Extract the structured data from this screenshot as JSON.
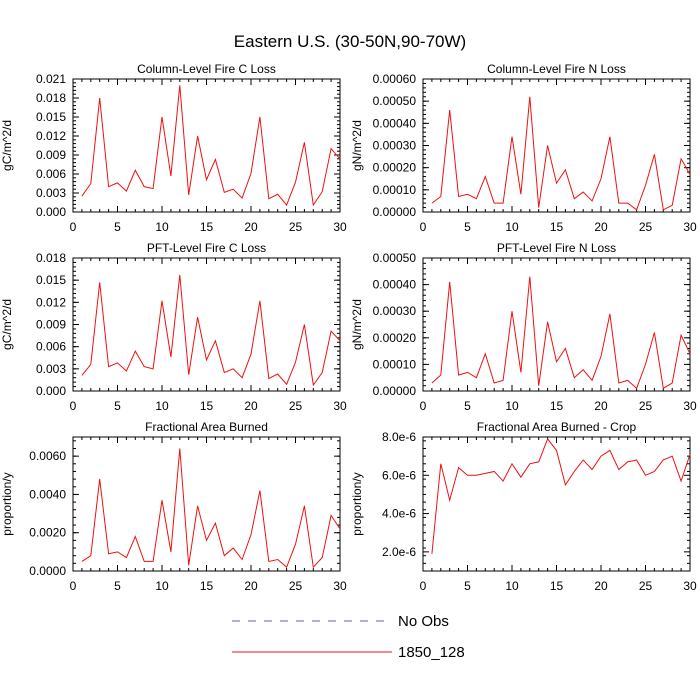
{
  "figure": {
    "title": "Eastern U.S. (30-50N,90-70W)",
    "legend": {
      "placement": "bottom-center",
      "items": [
        {
          "label": "No Obs",
          "style": "dashed",
          "color": "#5b5bd6"
        },
        {
          "label": "1850_128",
          "style": "solid",
          "color": "#ee1111"
        }
      ]
    }
  },
  "chart_data": [
    {
      "type": "line",
      "title": "Column-Level Fire C Loss",
      "xlabel": "",
      "ylabel": "gC/m^2/d",
      "xlim": [
        0,
        30
      ],
      "ylim": [
        0,
        0.021
      ],
      "xticks": [
        "0",
        "5",
        "10",
        "15",
        "20",
        "25",
        "30"
      ],
      "yticks": [
        "0.000",
        "0.003",
        "0.006",
        "0.009",
        "0.012",
        "0.015",
        "0.018",
        "0.021"
      ],
      "series": [
        {
          "color": "#ee1111",
          "x": [
            1,
            2,
            3,
            4,
            5,
            6,
            7,
            8,
            9,
            10,
            11,
            12,
            13,
            14,
            15,
            16,
            17,
            18,
            19,
            20,
            21,
            22,
            23,
            24,
            25,
            26,
            27,
            28,
            29,
            30
          ],
          "y": [
            0.0025,
            0.0045,
            0.018,
            0.004,
            0.0046,
            0.0033,
            0.0066,
            0.004,
            0.0037,
            0.015,
            0.0057,
            0.02,
            0.0027,
            0.012,
            0.0051,
            0.0083,
            0.0031,
            0.0036,
            0.0022,
            0.0061,
            0.015,
            0.0021,
            0.0028,
            0.0011,
            0.0047,
            0.011,
            0.0011,
            0.0032,
            0.01,
            0.0084
          ]
        }
      ]
    },
    {
      "type": "line",
      "title": "Column-Level Fire N Loss",
      "xlabel": "",
      "ylabel": "gN/m^2/d",
      "xlim": [
        0,
        30
      ],
      "ylim": [
        0,
        0.0006
      ],
      "xticks": [
        "0",
        "5",
        "10",
        "15",
        "20",
        "25",
        "30"
      ],
      "yticks": [
        "0.00000",
        "0.00010",
        "0.00020",
        "0.00030",
        "0.00040",
        "0.00050",
        "0.00060"
      ],
      "series": [
        {
          "color": "#ee1111",
          "x": [
            1,
            2,
            3,
            4,
            5,
            6,
            7,
            8,
            9,
            10,
            11,
            12,
            13,
            14,
            15,
            16,
            17,
            18,
            19,
            20,
            21,
            22,
            23,
            24,
            25,
            26,
            27,
            28,
            29,
            30
          ],
          "y": [
            4e-05,
            7e-05,
            0.00046,
            7e-05,
            8e-05,
            6e-05,
            0.00016,
            4e-05,
            4e-05,
            0.00034,
            8e-05,
            0.00052,
            2e-05,
            0.0003,
            0.00013,
            0.00019,
            6e-05,
            9e-05,
            5e-05,
            0.00015,
            0.00034,
            4e-05,
            4e-05,
            1e-05,
            0.00012,
            0.00026,
            1e-05,
            3e-05,
            0.00024,
            0.00017
          ]
        }
      ]
    },
    {
      "type": "line",
      "title": "PFT-Level Fire C Loss",
      "xlabel": "",
      "ylabel": "gC/m^2/d",
      "xlim": [
        0,
        30
      ],
      "ylim": [
        0,
        0.018
      ],
      "xticks": [
        "0",
        "5",
        "10",
        "15",
        "20",
        "25",
        "30"
      ],
      "yticks": [
        "0.000",
        "0.003",
        "0.006",
        "0.009",
        "0.012",
        "0.015",
        "0.018"
      ],
      "series": [
        {
          "color": "#ee1111",
          "x": [
            1,
            2,
            3,
            4,
            5,
            6,
            7,
            8,
            9,
            10,
            11,
            12,
            13,
            14,
            15,
            16,
            17,
            18,
            19,
            20,
            21,
            22,
            23,
            24,
            25,
            26,
            27,
            28,
            29,
            30
          ],
          "y": [
            0.0021,
            0.0036,
            0.0147,
            0.0033,
            0.0038,
            0.0027,
            0.0054,
            0.0033,
            0.003,
            0.0122,
            0.0046,
            0.0157,
            0.0022,
            0.01,
            0.0042,
            0.0068,
            0.0025,
            0.003,
            0.0018,
            0.005,
            0.0122,
            0.0017,
            0.0023,
            0.0009,
            0.0039,
            0.009,
            0.0008,
            0.0025,
            0.0081,
            0.0068
          ]
        }
      ]
    },
    {
      "type": "line",
      "title": "PFT-Level Fire N Loss",
      "xlabel": "",
      "ylabel": "gN/m^2/d",
      "xlim": [
        0,
        30
      ],
      "ylim": [
        0,
        0.0005
      ],
      "xticks": [
        "0",
        "5",
        "10",
        "15",
        "20",
        "25",
        "30"
      ],
      "yticks": [
        "0.00000",
        "0.00010",
        "0.00020",
        "0.00030",
        "0.00040",
        "0.00050"
      ],
      "series": [
        {
          "color": "#ee1111",
          "x": [
            1,
            2,
            3,
            4,
            5,
            6,
            7,
            8,
            9,
            10,
            11,
            12,
            13,
            14,
            15,
            16,
            17,
            18,
            19,
            20,
            21,
            22,
            23,
            24,
            25,
            26,
            27,
            28,
            29,
            30
          ],
          "y": [
            3e-05,
            6e-05,
            0.00041,
            6e-05,
            7e-05,
            5e-05,
            0.00014,
            3e-05,
            4e-05,
            0.0003,
            7e-05,
            0.00043,
            2e-05,
            0.00026,
            0.00011,
            0.00016,
            5e-05,
            8e-05,
            4e-05,
            0.00013,
            0.00029,
            3e-05,
            4e-05,
            1e-05,
            0.0001,
            0.00022,
            1e-05,
            3e-05,
            0.00021,
            0.00014
          ]
        }
      ]
    },
    {
      "type": "line",
      "title": "Fractional Area Burned",
      "xlabel": "",
      "ylabel": "proportion/y",
      "xlim": [
        0,
        30
      ],
      "ylim": [
        0,
        0.007
      ],
      "xticks": [
        "0",
        "5",
        "10",
        "15",
        "20",
        "25",
        "30"
      ],
      "yticks": [
        "0.0000",
        "0.0020",
        "0.0040",
        "0.0060"
      ],
      "series": [
        {
          "color": "#ee1111",
          "x": [
            1,
            2,
            3,
            4,
            5,
            6,
            7,
            8,
            9,
            10,
            11,
            12,
            13,
            14,
            15,
            16,
            17,
            18,
            19,
            20,
            21,
            22,
            23,
            24,
            25,
            26,
            27,
            28,
            29,
            30
          ],
          "y": [
            0.0005,
            0.0008,
            0.0048,
            0.0009,
            0.001,
            0.0007,
            0.0018,
            0.0005,
            0.0005,
            0.0037,
            0.001,
            0.0064,
            0.0003,
            0.0034,
            0.0016,
            0.0025,
            0.0008,
            0.0012,
            0.0006,
            0.0019,
            0.0042,
            0.0005,
            0.0006,
            0.0002,
            0.0014,
            0.0034,
            0.0002,
            0.0007,
            0.0029,
            0.0022
          ]
        }
      ]
    },
    {
      "type": "line",
      "title": "Fractional Area Burned - Crop",
      "xlabel": "",
      "ylabel": "proportion/y",
      "xlim": [
        0,
        30
      ],
      "ylim": [
        1e-06,
        8e-06
      ],
      "xticks": [
        "0",
        "5",
        "10",
        "15",
        "20",
        "25",
        "30"
      ],
      "yticks": [
        "2.0e-6",
        "4.0e-6",
        "6.0e-6",
        "8.0e-6"
      ],
      "series": [
        {
          "color": "#ee1111",
          "x": [
            1,
            2,
            3,
            4,
            5,
            6,
            7,
            8,
            9,
            10,
            11,
            12,
            13,
            14,
            15,
            16,
            17,
            18,
            19,
            20,
            21,
            22,
            23,
            24,
            25,
            26,
            27,
            28,
            29,
            30
          ],
          "y": [
            1.9e-06,
            6.6e-06,
            4.7e-06,
            6.4e-06,
            6e-06,
            6e-06,
            6.1e-06,
            6.2e-06,
            5.7e-06,
            6.6e-06,
            5.9e-06,
            6.6e-06,
            6.7e-06,
            7.9e-06,
            7.3e-06,
            5.5e-06,
            6.2e-06,
            6.8e-06,
            6.3e-06,
            7e-06,
            7.3e-06,
            6.3e-06,
            6.7e-06,
            6.8e-06,
            6e-06,
            6.2e-06,
            6.8e-06,
            7e-06,
            5.7e-06,
            7.1e-06
          ]
        }
      ]
    }
  ]
}
